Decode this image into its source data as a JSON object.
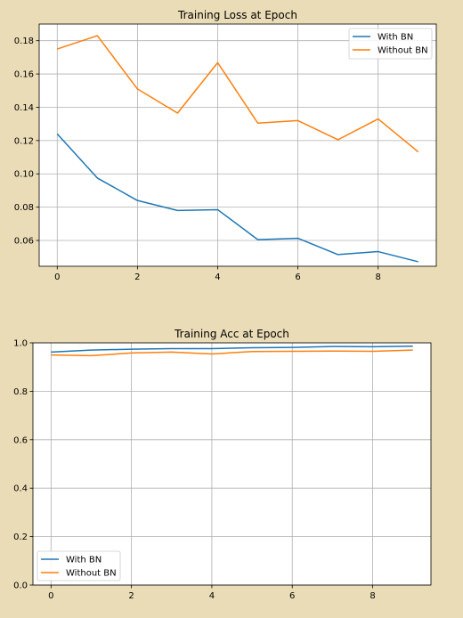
{
  "background": "#eadcb6",
  "colors": {
    "with_bn": "#1f77b4",
    "without_bn": "#ff7f0e",
    "grid": "#b0b0b0",
    "axes": "#000000"
  },
  "chart_data": [
    {
      "type": "line",
      "title": "Training Loss at Epoch",
      "xlabel": "",
      "ylabel": "",
      "x": [
        0,
        1,
        2,
        3,
        4,
        5,
        6,
        7,
        8,
        9
      ],
      "xlim": [
        -0.45,
        9.45
      ],
      "ylim": [
        0.0445,
        0.19
      ],
      "xticks": [
        0,
        2,
        4,
        6,
        8
      ],
      "xtick_labels": [
        "0",
        "2",
        "4",
        "6",
        "8"
      ],
      "yticks": [
        0.06,
        0.08,
        0.1,
        0.12,
        0.14,
        0.16,
        0.18
      ],
      "ytick_labels": [
        "0.06",
        "0.08",
        "0.10",
        "0.12",
        "0.14",
        "0.16",
        "0.18"
      ],
      "grid": true,
      "legend_position": "upper right",
      "series": [
        {
          "name": "With BN",
          "color": "#1f77b4",
          "values": [
            0.124,
            0.0975,
            0.084,
            0.078,
            0.0785,
            0.0605,
            0.0613,
            0.0515,
            0.0533,
            0.0472
          ]
        },
        {
          "name": "Without BN",
          "color": "#ff7f0e",
          "values": [
            0.175,
            0.183,
            0.151,
            0.1365,
            0.1668,
            0.1305,
            0.132,
            0.1205,
            0.133,
            0.1132
          ]
        }
      ]
    },
    {
      "type": "line",
      "title": "Training Acc at Epoch",
      "xlabel": "",
      "ylabel": "",
      "x": [
        0,
        1,
        2,
        3,
        4,
        5,
        6,
        7,
        8,
        9
      ],
      "xlim": [
        -0.45,
        9.45
      ],
      "ylim": [
        0.0,
        1.0
      ],
      "xticks": [
        0,
        2,
        4,
        6,
        8
      ],
      "xtick_labels": [
        "0",
        "2",
        "4",
        "6",
        "8"
      ],
      "yticks": [
        0.0,
        0.2,
        0.4,
        0.6,
        0.8,
        1.0
      ],
      "ytick_labels": [
        "0.0",
        "0.2",
        "0.4",
        "0.6",
        "0.8",
        "1.0"
      ],
      "grid": true,
      "legend_position": "lower left",
      "series": [
        {
          "name": "With BN",
          "color": "#1f77b4",
          "values": [
            0.962,
            0.97,
            0.974,
            0.976,
            0.976,
            0.98,
            0.981,
            0.985,
            0.984,
            0.986
          ]
        },
        {
          "name": "Without BN",
          "color": "#ff7f0e",
          "values": [
            0.95,
            0.947,
            0.958,
            0.962,
            0.954,
            0.964,
            0.965,
            0.966,
            0.965,
            0.97
          ]
        }
      ]
    }
  ]
}
